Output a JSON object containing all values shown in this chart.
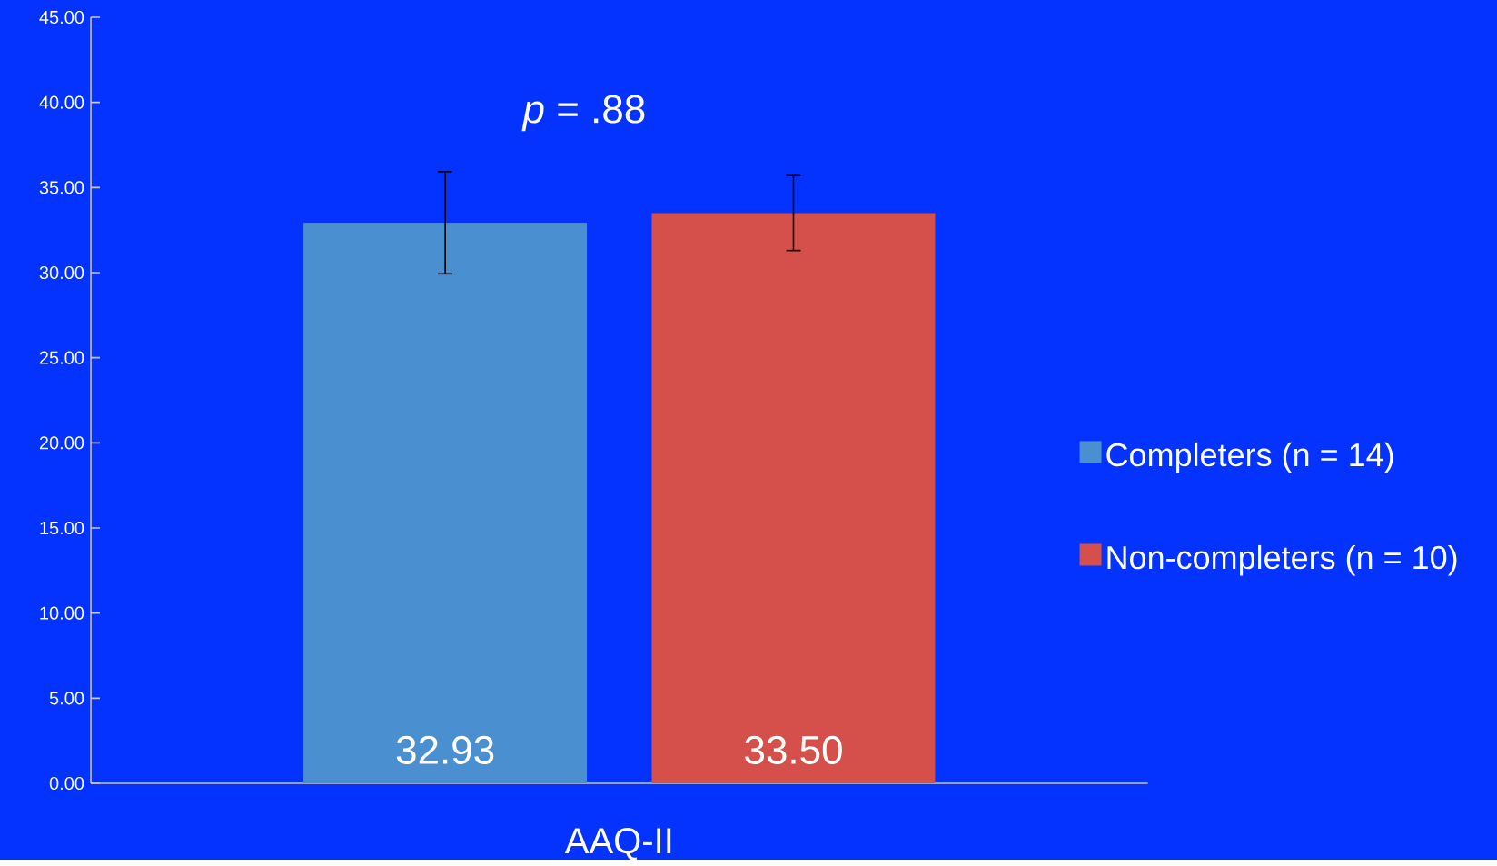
{
  "chart_data": {
    "type": "bar",
    "categories": [
      "AAQ-II"
    ],
    "series": [
      {
        "name": "Completers (n = 14)",
        "color": "#4a8fd0",
        "values": [
          32.93
        ],
        "errors": [
          3.0
        ],
        "value_labels": [
          "32.93"
        ]
      },
      {
        "name": "Non-completers (n = 10)",
        "color": "#d5504a",
        "values": [
          33.5
        ],
        "errors": [
          2.2
        ],
        "value_labels": [
          "33.50"
        ]
      }
    ],
    "ylim": [
      0,
      45
    ],
    "yticks": [
      {
        "value": 0,
        "label": "0.00"
      },
      {
        "value": 5,
        "label": "5.00"
      },
      {
        "value": 10,
        "label": "10.00"
      },
      {
        "value": 15,
        "label": "15.00"
      },
      {
        "value": 20,
        "label": "20.00"
      },
      {
        "value": 25,
        "label": "25.00"
      },
      {
        "value": 30,
        "label": "30.00"
      },
      {
        "value": 35,
        "label": "35.00"
      },
      {
        "value": 40,
        "label": "40.00"
      },
      {
        "value": 45,
        "label": "45.00"
      }
    ],
    "annotations": [
      "*p* = .88"
    ],
    "grid": false,
    "legend": "right"
  }
}
